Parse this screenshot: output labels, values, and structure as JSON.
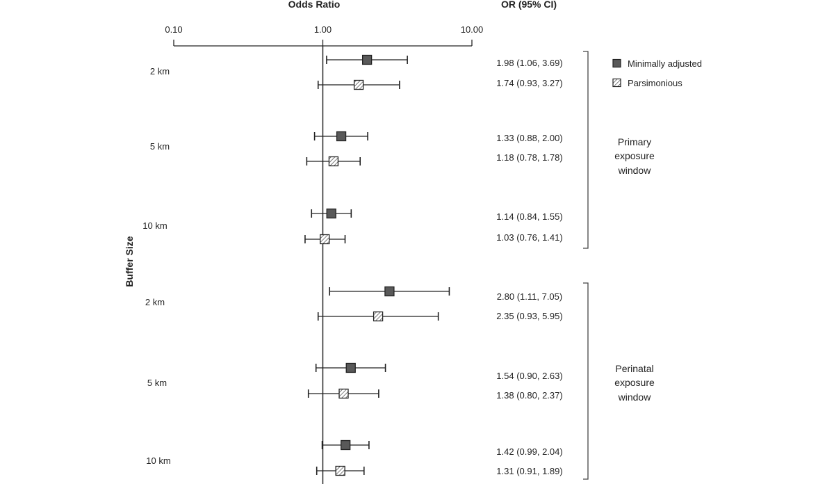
{
  "chart_data": {
    "type": "forest",
    "scale": "log",
    "xlim": [
      0.1,
      10
    ],
    "xticks": [
      {
        "value": 0.1,
        "label": "0.10"
      },
      {
        "value": 1,
        "label": "1.00"
      },
      {
        "value": 10,
        "label": "10.00"
      }
    ],
    "reference_value": 1,
    "xlabel": "Odds Ratio",
    "ylabel": "Buffer Size",
    "ci_header": "OR (95% CI)",
    "legend": [
      {
        "key": "minimal",
        "label": "Minimally adjusted",
        "fill": "#595959"
      },
      {
        "key": "parsimonious",
        "label": "Parsimonious",
        "fill": "hatched"
      }
    ],
    "groups": [
      {
        "window_label": [
          "Primary",
          "exposure",
          "window"
        ],
        "buffers": [
          {
            "label": "2 km",
            "rows": [
              {
                "model": "minimal",
                "or": 1.98,
                "lower": 1.06,
                "upper": 3.69,
                "text": "1.98 (1.06, 3.69)"
              },
              {
                "model": "parsimonious",
                "or": 1.74,
                "lower": 0.93,
                "upper": 3.27,
                "text": "1.74 (0.93, 3.27)"
              }
            ]
          },
          {
            "label": "5 km",
            "rows": [
              {
                "model": "minimal",
                "or": 1.33,
                "lower": 0.88,
                "upper": 2.0,
                "text": "1.33 (0.88, 2.00)"
              },
              {
                "model": "parsimonious",
                "or": 1.18,
                "lower": 0.78,
                "upper": 1.78,
                "text": "1.18 (0.78, 1.78)"
              }
            ]
          },
          {
            "label": "10 km",
            "rows": [
              {
                "model": "minimal",
                "or": 1.14,
                "lower": 0.84,
                "upper": 1.55,
                "text": "1.14 (0.84, 1.55)"
              },
              {
                "model": "parsimonious",
                "or": 1.03,
                "lower": 0.76,
                "upper": 1.41,
                "text": "1.03 (0.76, 1.41)"
              }
            ]
          }
        ]
      },
      {
        "window_label": [
          "Perinatal",
          "exposure",
          "window"
        ],
        "buffers": [
          {
            "label": "2 km",
            "rows": [
              {
                "model": "minimal",
                "or": 2.8,
                "lower": 1.11,
                "upper": 7.05,
                "text": "2.80 (1.11, 7.05)"
              },
              {
                "model": "parsimonious",
                "or": 2.35,
                "lower": 0.93,
                "upper": 5.95,
                "text": "2.35 (0.93, 5.95)"
              }
            ]
          },
          {
            "label": "5 km",
            "rows": [
              {
                "model": "minimal",
                "or": 1.54,
                "lower": 0.9,
                "upper": 2.63,
                "text": "1.54 (0.90, 2.63)"
              },
              {
                "model": "parsimonious",
                "or": 1.38,
                "lower": 0.8,
                "upper": 2.37,
                "text": "1.38 (0.80, 2.37)"
              }
            ]
          },
          {
            "label": "10 km",
            "rows": [
              {
                "model": "minimal",
                "or": 1.42,
                "lower": 0.99,
                "upper": 2.04,
                "text": "1.42 (0.99, 2.04)"
              },
              {
                "model": "parsimonious",
                "or": 1.31,
                "lower": 0.91,
                "upper": 1.89,
                "text": "1.31 (0.91, 1.89)"
              }
            ]
          }
        ]
      }
    ]
  }
}
